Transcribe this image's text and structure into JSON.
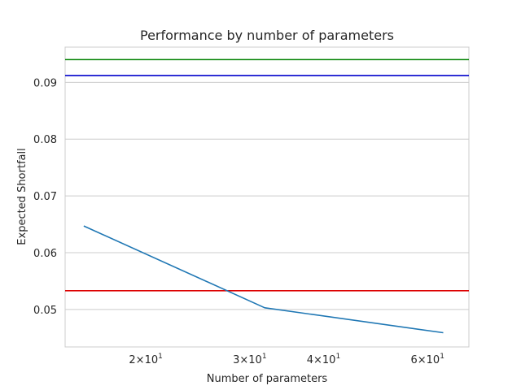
{
  "chart_data": {
    "type": "line",
    "title": "Performance by number of parameters",
    "xlabel": "Number of parameters",
    "ylabel": "Expected Shortfall",
    "xscale": "log",
    "xlim": [
      14.6,
      70.5
    ],
    "ylim": [
      0.0434,
      0.0962
    ],
    "grid": "horizontal",
    "legend": "none",
    "x_ticks": [
      {
        "value": 20,
        "base": "2×10",
        "exp": "1"
      },
      {
        "value": 30,
        "base": "3×10",
        "exp": "1"
      },
      {
        "value": 40,
        "base": "4×10",
        "exp": "1"
      },
      {
        "value": 60,
        "base": "6×10",
        "exp": "1"
      }
    ],
    "y_ticks": [
      {
        "value": 0.05,
        "label": "0.05"
      },
      {
        "value": 0.06,
        "label": "0.06"
      },
      {
        "value": 0.07,
        "label": "0.07"
      },
      {
        "value": 0.08,
        "label": "0.08"
      },
      {
        "value": 0.09,
        "label": "0.09"
      }
    ],
    "series": [
      {
        "color": "#1f77b4",
        "x": [
          15.7,
          31.8,
          63.8
        ],
        "y": [
          0.0647,
          0.0503,
          0.0459
        ]
      }
    ],
    "hlines": [
      {
        "y": 0.094,
        "color": "#008000"
      },
      {
        "y": 0.0912,
        "color": "#0000cc"
      },
      {
        "y": 0.0533,
        "color": "#dd0000"
      }
    ]
  }
}
